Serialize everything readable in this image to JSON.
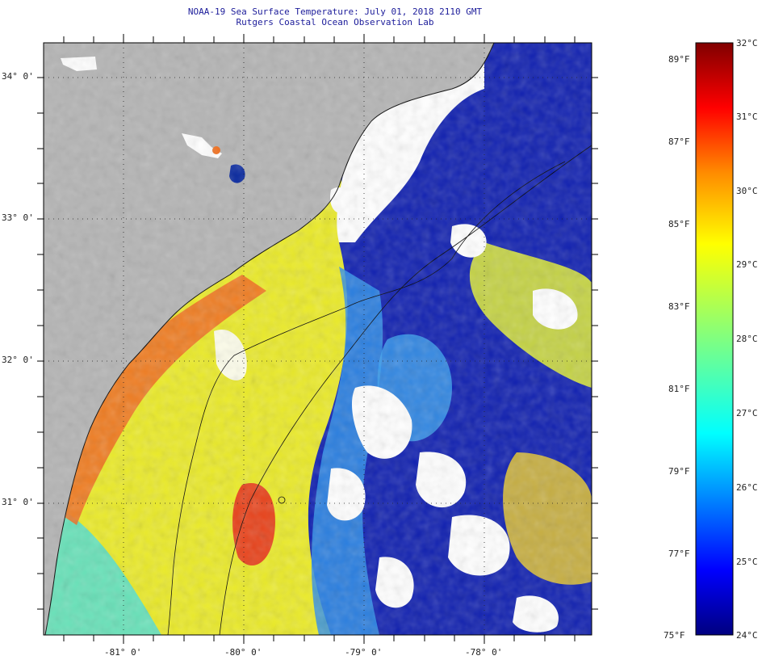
{
  "header": {
    "title": "NOAA-19 Sea Surface Temperature:  July 01, 2018 2110 GMT",
    "subtitle": "Rutgers Coastal Ocean Observation Lab"
  },
  "map": {
    "lat_labels": [
      "34° 0'",
      "33° 0'",
      "32° 0'",
      "31° 0'"
    ],
    "lon_labels": [
      "-81° 0'",
      "-80° 0'",
      "-79° 0'",
      "-78° 0'"
    ],
    "colors": {
      "land": "#b4b4b4",
      "cloud": "#ffffff",
      "coast": "#000000"
    }
  },
  "colorbar": {
    "fahrenheit": [
      "89°F",
      "87°F",
      "85°F",
      "83°F",
      "81°F",
      "79°F",
      "77°F",
      "75°F"
    ],
    "celsius": [
      "32°C",
      "31°C",
      "30°C",
      "29°C",
      "28°C",
      "27°C",
      "26°C",
      "25°C",
      "24°C"
    ]
  }
}
